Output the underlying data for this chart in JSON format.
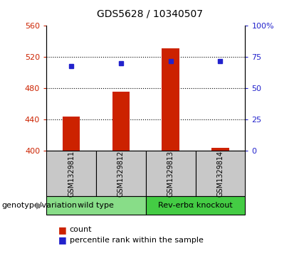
{
  "title": "GDS5628 / 10340507",
  "samples": [
    "GSM1329811",
    "GSM1329812",
    "GSM1329813",
    "GSM1329814"
  ],
  "counts": [
    444,
    476,
    531,
    404
  ],
  "percentile_ranks": [
    68,
    70,
    72,
    72
  ],
  "groups": [
    {
      "label": "wild type",
      "samples": [
        0,
        1
      ],
      "color": "#88dd88"
    },
    {
      "label": "Rev-erbα knockout",
      "samples": [
        2,
        3
      ],
      "color": "#44cc44"
    }
  ],
  "ylim_left": [
    400,
    560
  ],
  "ylim_right": [
    0,
    100
  ],
  "yticks_left": [
    400,
    440,
    480,
    520,
    560
  ],
  "yticks_right": [
    0,
    25,
    50,
    75,
    100
  ],
  "ytick_labels_right": [
    "0",
    "25",
    "50",
    "75",
    "100%"
  ],
  "bar_color": "#cc2200",
  "dot_color": "#2222cc",
  "bar_width": 0.35,
  "label_color_left": "#cc2200",
  "label_color_right": "#2222cc",
  "legend_count_label": "count",
  "legend_pct_label": "percentile rank within the sample",
  "genotype_label": "genotype/variation",
  "cell_gray": "#c8c8c8",
  "title_fontsize": 10,
  "tick_fontsize": 8,
  "sample_fontsize": 7,
  "group_fontsize": 8,
  "legend_fontsize": 8
}
